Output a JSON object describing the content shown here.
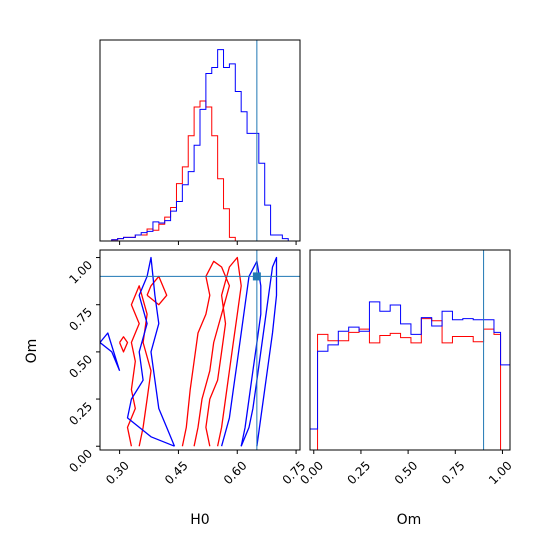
{
  "chart_data": {
    "type": "corner",
    "parameters": [
      "H0",
      "Om"
    ],
    "truths": {
      "H0": 0.65,
      "Om": 0.9
    },
    "colors": {
      "series_a": "#ff0000",
      "series_b": "#0000ff",
      "truth": "#1f77b4"
    },
    "axes": {
      "H0": {
        "label": "H0",
        "range": [
          0.25,
          0.76
        ],
        "ticks": [
          "0.30",
          "0.45",
          "0.60",
          "0.75"
        ]
      },
      "Om": {
        "label": "Om",
        "range": [
          -0.02,
          1.04
        ],
        "ticks": [
          "0.00",
          "0.25",
          "0.50",
          "0.75",
          "1.00"
        ]
      }
    },
    "hist_H0": {
      "bin_edges": [
        0.25,
        0.265,
        0.28,
        0.295,
        0.31,
        0.325,
        0.34,
        0.355,
        0.37,
        0.385,
        0.4,
        0.415,
        0.43,
        0.445,
        0.46,
        0.475,
        0.49,
        0.505,
        0.52,
        0.535,
        0.55,
        0.565,
        0.58,
        0.595,
        0.61,
        0.625,
        0.64,
        0.655,
        0.67,
        0.685,
        0.7,
        0.715,
        0.73,
        0.745,
        0.76
      ],
      "series": [
        {
          "color_key": "series_a",
          "values": [
            0,
            0,
            1,
            2,
            3,
            3,
            5,
            5,
            10,
            9,
            14,
            20,
            28,
            48,
            62,
            88,
            112,
            117,
            112,
            88,
            52,
            27,
            3,
            0,
            0,
            0,
            0,
            0,
            0,
            0,
            0,
            0,
            0,
            0
          ]
        },
        {
          "color_key": "series_b",
          "values": [
            0,
            0,
            1,
            2,
            3,
            3,
            5,
            7,
            8,
            16,
            15,
            17,
            25,
            33,
            47,
            58,
            80,
            110,
            140,
            145,
            160,
            145,
            148,
            125,
            108,
            90,
            90,
            65,
            30,
            5,
            5,
            2,
            0,
            0
          ]
        }
      ]
    },
    "hist_Om": {
      "bin_edges": [
        -0.02,
        0.02,
        0.075,
        0.13,
        0.185,
        0.24,
        0.295,
        0.35,
        0.405,
        0.46,
        0.515,
        0.57,
        0.625,
        0.68,
        0.735,
        0.79,
        0.845,
        0.9,
        0.955,
        0.99,
        1.04
      ],
      "series": [
        {
          "color_key": "series_a",
          "values": [
            0,
            110,
            104,
            104,
            112,
            115,
            102,
            109,
            111,
            107,
            102,
            125,
            123,
            102,
            108,
            108,
            103,
            115,
            110,
            0
          ]
        },
        {
          "color_key": "series_b",
          "values": [
            20,
            94,
            100,
            113,
            117,
            113,
            141,
            132,
            138,
            120,
            110,
            126,
            118,
            132,
            124,
            125,
            124,
            124,
            112,
            81
          ]
        }
      ]
    },
    "contours": [
      {
        "color_key": "series_a",
        "points": [
          [
            0.33,
            0.0
          ],
          [
            0.32,
            0.1
          ],
          [
            0.34,
            0.2
          ],
          [
            0.33,
            0.3
          ],
          [
            0.34,
            0.45
          ],
          [
            0.33,
            0.55
          ],
          [
            0.35,
            0.65
          ],
          [
            0.33,
            0.75
          ],
          [
            0.35,
            0.85
          ],
          [
            0.37,
            0.7
          ],
          [
            0.36,
            0.55
          ],
          [
            0.38,
            0.4
          ],
          [
            0.37,
            0.25
          ],
          [
            0.36,
            0.1
          ],
          [
            0.35,
            0.0
          ]
        ]
      },
      {
        "color_key": "series_a",
        "points": [
          [
            0.37,
            0.8
          ],
          [
            0.4,
            0.75
          ],
          [
            0.42,
            0.8
          ],
          [
            0.4,
            0.9
          ],
          [
            0.38,
            0.85
          ],
          [
            0.37,
            0.8
          ]
        ]
      },
      {
        "color_key": "series_a",
        "points": [
          [
            0.3,
            0.55
          ],
          [
            0.31,
            0.5
          ],
          [
            0.32,
            0.55
          ],
          [
            0.31,
            0.58
          ],
          [
            0.3,
            0.55
          ]
        ]
      },
      {
        "color_key": "series_a",
        "points": [
          [
            0.46,
            0.0
          ],
          [
            0.47,
            0.1
          ],
          [
            0.48,
            0.3
          ],
          [
            0.49,
            0.45
          ],
          [
            0.5,
            0.6
          ],
          [
            0.52,
            0.7
          ],
          [
            0.53,
            0.8
          ],
          [
            0.52,
            0.9
          ],
          [
            0.54,
            0.98
          ],
          [
            0.56,
            0.95
          ],
          [
            0.58,
            0.85
          ],
          [
            0.56,
            0.7
          ],
          [
            0.54,
            0.55
          ],
          [
            0.53,
            0.4
          ],
          [
            0.51,
            0.25
          ],
          [
            0.5,
            0.1
          ],
          [
            0.49,
            0.0
          ]
        ]
      },
      {
        "color_key": "series_a",
        "points": [
          [
            0.53,
            0.0
          ],
          [
            0.52,
            0.1
          ],
          [
            0.53,
            0.25
          ],
          [
            0.55,
            0.35
          ],
          [
            0.56,
            0.5
          ],
          [
            0.57,
            0.65
          ],
          [
            0.56,
            0.8
          ],
          [
            0.58,
            0.95
          ],
          [
            0.6,
            1.0
          ],
          [
            0.61,
            0.85
          ],
          [
            0.6,
            0.7
          ],
          [
            0.59,
            0.55
          ],
          [
            0.58,
            0.4
          ],
          [
            0.57,
            0.25
          ],
          [
            0.56,
            0.1
          ],
          [
            0.55,
            0.0
          ]
        ]
      },
      {
        "color_key": "series_b",
        "points": [
          [
            0.44,
            0.0
          ],
          [
            0.38,
            0.05
          ],
          [
            0.32,
            0.15
          ],
          [
            0.33,
            0.25
          ],
          [
            0.36,
            0.35
          ],
          [
            0.35,
            0.5
          ],
          [
            0.37,
            0.65
          ],
          [
            0.35,
            0.8
          ],
          [
            0.37,
            0.9
          ],
          [
            0.38,
            1.0
          ],
          [
            0.39,
            0.8
          ],
          [
            0.4,
            0.65
          ],
          [
            0.38,
            0.5
          ],
          [
            0.39,
            0.35
          ],
          [
            0.4,
            0.2
          ],
          [
            0.42,
            0.1
          ],
          [
            0.44,
            0.0
          ]
        ]
      },
      {
        "color_key": "series_b",
        "points": [
          [
            0.3,
            0.4
          ],
          [
            0.27,
            0.6
          ],
          [
            0.25,
            0.55
          ],
          [
            0.28,
            0.5
          ],
          [
            0.3,
            0.4
          ]
        ]
      },
      {
        "color_key": "series_b",
        "points": [
          [
            0.56,
            0.0
          ],
          [
            0.58,
            0.15
          ],
          [
            0.59,
            0.3
          ],
          [
            0.6,
            0.45
          ],
          [
            0.61,
            0.6
          ],
          [
            0.62,
            0.75
          ],
          [
            0.63,
            0.9
          ],
          [
            0.65,
            0.98
          ],
          [
            0.66,
            0.85
          ],
          [
            0.66,
            0.7
          ],
          [
            0.65,
            0.55
          ],
          [
            0.64,
            0.4
          ],
          [
            0.63,
            0.25
          ],
          [
            0.62,
            0.1
          ],
          [
            0.61,
            0.0
          ]
        ]
      },
      {
        "color_key": "series_b",
        "points": [
          [
            0.61,
            0.0
          ],
          [
            0.63,
            0.1
          ],
          [
            0.64,
            0.2
          ],
          [
            0.65,
            0.35
          ],
          [
            0.66,
            0.5
          ],
          [
            0.67,
            0.65
          ],
          [
            0.68,
            0.8
          ],
          [
            0.69,
            0.95
          ],
          [
            0.7,
            1.0
          ],
          [
            0.7,
            0.8
          ],
          [
            0.69,
            0.6
          ],
          [
            0.68,
            0.45
          ],
          [
            0.67,
            0.3
          ],
          [
            0.66,
            0.15
          ],
          [
            0.65,
            0.0
          ]
        ]
      }
    ]
  }
}
